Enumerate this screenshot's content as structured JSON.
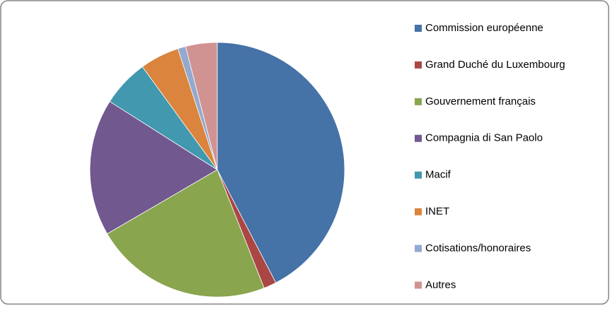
{
  "chart_data": {
    "type": "pie",
    "categories": [
      "Commission européenne",
      "Grand Duché du Luxembourg",
      "Gouvernement français",
      "Compagnia di San Paolo",
      "Macif",
      "INET",
      "Cotisations/honoraires",
      "Autres"
    ],
    "values": [
      42.4,
      1.6,
      22.6,
      17.4,
      6.0,
      5.0,
      1.0,
      4.0
    ],
    "colors": [
      "#4572a7",
      "#aa4643",
      "#89a54e",
      "#71588f",
      "#4198af",
      "#db843d",
      "#93a9cf",
      "#d19392"
    ],
    "legend": "right"
  }
}
